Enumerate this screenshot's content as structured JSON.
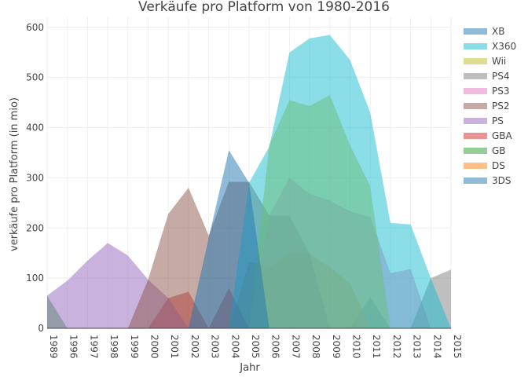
{
  "chart_data": {
    "type": "area",
    "title": "Verkäufe pro Platform von 1980-2016",
    "xlabel": "Jahr",
    "ylabel": "verkäufe pro Platform (in mio)",
    "categories": [
      "1989",
      "1996",
      "1997",
      "1998",
      "1999",
      "2000",
      "2001",
      "2002",
      "2003",
      "2004",
      "2005",
      "2006",
      "2007",
      "2008",
      "2009",
      "2010",
      "2011",
      "2012",
      "2013",
      "2014",
      "2015"
    ],
    "ylim": [
      0,
      620
    ],
    "yticks": [
      0,
      100,
      200,
      300,
      400,
      500,
      600
    ],
    "grid": true,
    "legend_position": "top-right",
    "series": [
      {
        "name": "3DS",
        "color": "#1f77b4",
        "values": [
          0,
          0,
          0,
          0,
          0,
          0,
          0,
          0,
          0,
          0,
          0,
          0,
          0,
          0,
          0,
          0,
          62,
          0,
          0,
          0,
          0
        ]
      },
      {
        "name": "DS",
        "color": "#ff7f0e",
        "values": [
          0,
          0,
          0,
          0,
          0,
          0,
          0,
          0,
          0,
          0,
          132,
          122,
          150,
          148,
          122,
          90,
          0,
          0,
          0,
          0,
          0
        ]
      },
      {
        "name": "GB",
        "color": "#2ca02c",
        "values": [
          65,
          0,
          0,
          0,
          0,
          0,
          0,
          0,
          0,
          0,
          0,
          0,
          0,
          0,
          0,
          0,
          0,
          0,
          0,
          0,
          0
        ]
      },
      {
        "name": "GBA",
        "color": "#d62728",
        "values": [
          0,
          0,
          0,
          0,
          0,
          0,
          60,
          73,
          0,
          80,
          0,
          0,
          0,
          0,
          0,
          0,
          0,
          0,
          0,
          0,
          0
        ]
      },
      {
        "name": "PS",
        "color": "#9467bd",
        "values": [
          65,
          95,
          135,
          170,
          145,
          97,
          60,
          0,
          0,
          0,
          0,
          0,
          0,
          0,
          0,
          0,
          0,
          0,
          0,
          0,
          0
        ]
      },
      {
        "name": "PS2",
        "color": "#8c564b",
        "values": [
          0,
          0,
          0,
          0,
          0,
          97,
          228,
          280,
          185,
          292,
          292,
          225,
          225,
          148,
          0,
          0,
          0,
          0,
          0,
          0,
          0
        ]
      },
      {
        "name": "PS3",
        "color": "#e377c2",
        "values": [
          0,
          0,
          0,
          0,
          0,
          0,
          0,
          0,
          0,
          0,
          0,
          225,
          300,
          268,
          255,
          233,
          222,
          110,
          118,
          0,
          0
        ]
      },
      {
        "name": "PS4",
        "color": "#7f7f7f",
        "values": [
          0,
          0,
          0,
          0,
          0,
          0,
          0,
          0,
          0,
          0,
          0,
          0,
          0,
          0,
          0,
          0,
          0,
          0,
          0,
          100,
          117
        ]
      },
      {
        "name": "Wii",
        "color": "#bcbd22",
        "values": [
          0,
          0,
          0,
          0,
          0,
          0,
          0,
          0,
          0,
          0,
          0,
          365,
          455,
          443,
          465,
          365,
          283,
          0,
          0,
          0,
          0
        ]
      },
      {
        "name": "X360",
        "color": "#17becf",
        "values": [
          0,
          0,
          0,
          0,
          0,
          0,
          0,
          0,
          0,
          0,
          290,
          362,
          550,
          578,
          585,
          535,
          430,
          210,
          207,
          100,
          0
        ]
      },
      {
        "name": "XB",
        "color": "#1f77b4",
        "values": [
          0,
          0,
          0,
          0,
          0,
          0,
          0,
          0,
          180,
          355,
          290,
          0,
          0,
          0,
          0,
          0,
          0,
          0,
          0,
          0,
          0
        ]
      }
    ],
    "legend_order": [
      "XB",
      "X360",
      "Wii",
      "PS4",
      "PS3",
      "PS2",
      "PS",
      "GBA",
      "GB",
      "DS",
      "3DS"
    ]
  }
}
